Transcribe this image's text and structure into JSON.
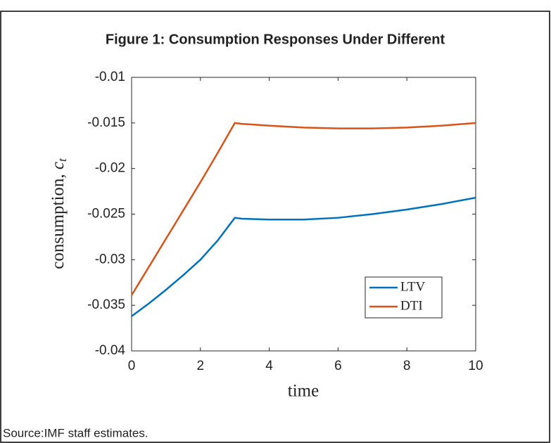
{
  "chart_data": {
    "type": "line",
    "title": "Figure 1: Consumption Responses Under Different",
    "xlabel": "time",
    "ylabel": {
      "text": "consumption,",
      "symbol": "c",
      "subscript": "t"
    },
    "source": "Source:IMF staff estimates.",
    "x": [
      0,
      0.5,
      1,
      1.5,
      2,
      2.5,
      3,
      3.2,
      4,
      5,
      6,
      7,
      8,
      9,
      10
    ],
    "series": [
      {
        "name": "LTV",
        "color": "#0072bd",
        "values": [
          -0.0362,
          -0.0348,
          -0.0333,
          -0.0317,
          -0.03,
          -0.0279,
          -0.0254,
          -0.0255,
          -0.0256,
          -0.0256,
          -0.0254,
          -0.025,
          -0.0245,
          -0.0239,
          -0.0232
        ]
      },
      {
        "name": "DTI",
        "color": "#d95319",
        "values": [
          -0.0339,
          -0.0308,
          -0.0277,
          -0.0246,
          -0.0215,
          -0.0183,
          -0.015,
          -0.0151,
          -0.0153,
          -0.0155,
          -0.0156,
          -0.0156,
          -0.0155,
          -0.0153,
          -0.015
        ]
      }
    ],
    "xlim": [
      0,
      10
    ],
    "xticks": [
      0,
      2,
      4,
      6,
      8,
      10
    ],
    "ylim": [
      -0.04,
      -0.01
    ],
    "yticks": [
      -0.04,
      -0.035,
      -0.03,
      -0.025,
      -0.02,
      -0.015,
      -0.01
    ],
    "legend": "lower right"
  }
}
